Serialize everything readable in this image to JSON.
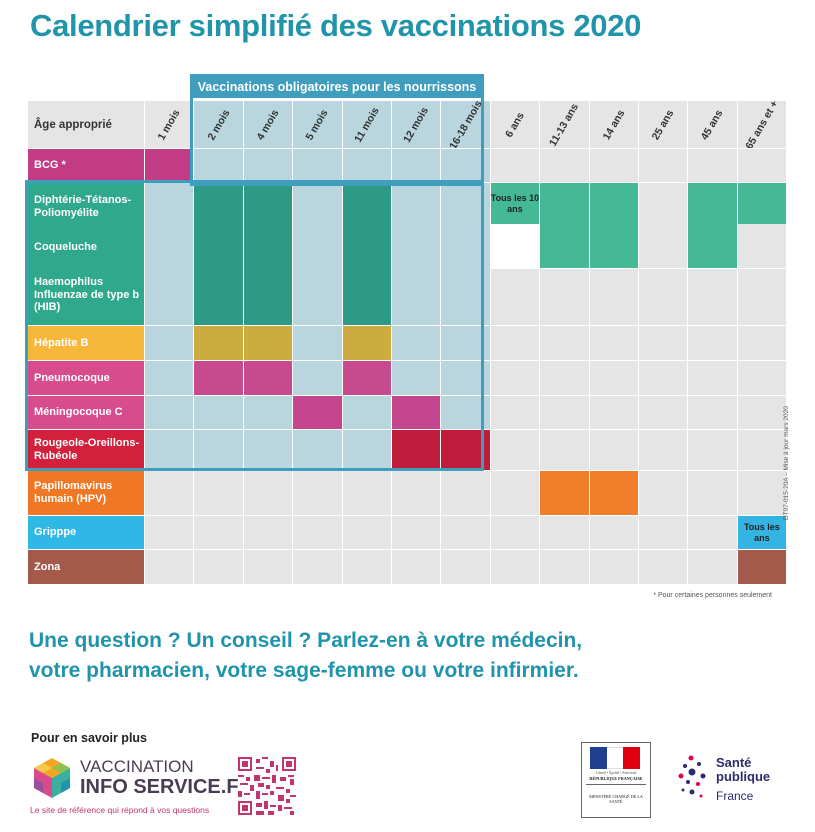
{
  "title": "Calendrier simplifié des vaccinations 2020",
  "obligatory_header": "Vaccinations obligatoires pour les nourrissons",
  "age_header": "Âge approprié",
  "ages": [
    "1 mois",
    "2 mois",
    "4 mois",
    "5 mois",
    "11 mois",
    "12 mois",
    "16-18 mois",
    "6 ans",
    "11-13 ans",
    "14 ans",
    "25 ans",
    "45 ans",
    "65 ans et +"
  ],
  "rows": {
    "bcg": "BCG *",
    "dtp": "Diphtérie-Tétanos-Poliomyélite",
    "coqueluche": "Coqueluche",
    "hib": "Haemophilus Influenzae de type b (HIB)",
    "hepatite": "Hépatite B",
    "pneumo": "Pneumocoque",
    "meningo": "Méningocoque C",
    "ror": "Rougeole-Oreillons-Rubéole",
    "hpv": "Papillomavirus humain (HPV)",
    "grippe": "Gripppe",
    "zona": "Zona"
  },
  "notes": {
    "dtp_senior": "Tous les 10 ans",
    "grippe_senior": "Tous les ans"
  },
  "footnote": "* Pour certaines personnes seulement",
  "side_code": "DT07-015-20A – Mise à jour mars 2020",
  "question_line1": "Une question ? Un conseil ?   Parlez-en à votre médecin,",
  "question_line2": "votre pharmacien, votre sage-femme ou votre infirmier.",
  "more_info": "Pour en savoir plus",
  "logo": {
    "line1": "VACCINATION",
    "line2": "INFO SERVICE.FR",
    "tagline": "Le site de référence qui répond à vos questions"
  },
  "republique": {
    "motto": "Liberté • Égalité • Fraternité",
    "name": "RÉPUBLIQUE FRANÇAISE",
    "ministry": "MINISTÈRE CHARGÉ DE LA SANTÉ"
  },
  "sante_publique": {
    "line1": "Santé",
    "line2": "publique",
    "line3": "France"
  },
  "colors": {
    "title": "#1f94ab",
    "obligatory_frame": "#3f9dbd",
    "bcg": "#c13c84",
    "dtp": "#30a88c",
    "hepatite": "#f6b73b",
    "pneumo": "#d64c8c",
    "ror": "#d2203d",
    "hpv": "#f07824",
    "grippe": "#2fb7e6",
    "zona": "#a35a4a"
  }
}
